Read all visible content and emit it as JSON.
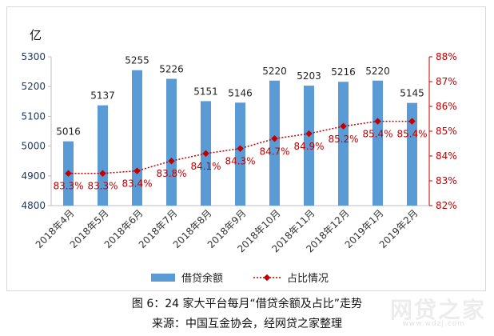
{
  "chart_data": {
    "type": "bar",
    "categories": [
      "2018年4月",
      "2018年5月",
      "2018年6月",
      "2018年7月",
      "2018年8月",
      "2018年9月",
      "2018年10月",
      "2018年11月",
      "2018年12月",
      "2019年1月",
      "2019年2月"
    ],
    "series": [
      {
        "name": "借贷余额",
        "type": "bar",
        "axis": "left",
        "values": [
          5016,
          5137,
          5255,
          5226,
          5151,
          5146,
          5220,
          5203,
          5216,
          5220,
          5145
        ],
        "labels": [
          "5016",
          "5137",
          "5255",
          "5226",
          "5151",
          "5146",
          "5220",
          "5203",
          "5216",
          "5220",
          "5145"
        ],
        "color": "#5b9bd5"
      },
      {
        "name": "占比情况",
        "type": "line",
        "axis": "right",
        "values": [
          83.3,
          83.3,
          83.4,
          83.8,
          84.1,
          84.3,
          84.7,
          84.9,
          85.2,
          85.4,
          85.4
        ],
        "labels": [
          "83.3%",
          "83.3%",
          "83.4%",
          "83.8%",
          "84.1%",
          "84.3%",
          "84.7%",
          "84.9%",
          "85.2%",
          "85.4%",
          "85.4%"
        ],
        "color": "#c00000"
      }
    ],
    "left_axis": {
      "unit": "亿",
      "ylim": [
        4800,
        5300
      ],
      "ticks": [
        "4800",
        "4900",
        "5000",
        "5100",
        "5200",
        "5300"
      ],
      "color": "#1f3864"
    },
    "right_axis": {
      "ylim": [
        82,
        88
      ],
      "ticks": [
        "82%",
        "83%",
        "84%",
        "85%",
        "86%",
        "87%",
        "88%"
      ],
      "color": "#c00000"
    },
    "legend_position": "bottom",
    "grid": false
  },
  "caption": {
    "figure": "图 6：24 家大平台每月“借贷余额及占比”走势",
    "source": "来源：中国互金协会，经网贷之家整理"
  },
  "watermark": {
    "text": "网贷之家",
    "url": "www.wdzj.com"
  }
}
